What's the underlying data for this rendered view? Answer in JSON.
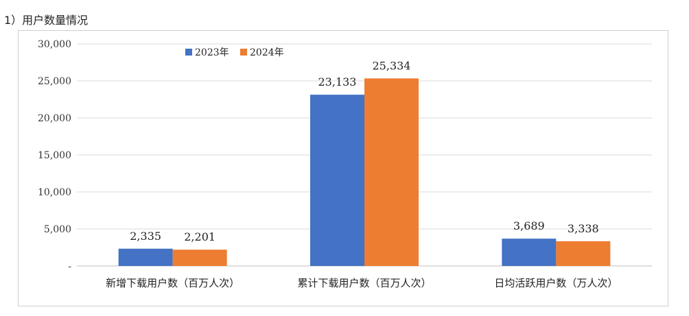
{
  "heading": "1）用户数量情况",
  "chart_data": {
    "type": "bar",
    "categories": [
      "新增下载用户数（百万人次）",
      "累计下载用户数（百万人次）",
      "日均活跃用户数（万人次）"
    ],
    "series": [
      {
        "name": "2023年",
        "values": [
          2335,
          23133,
          3689
        ],
        "labels": [
          "2,335",
          "23,133",
          "3,689"
        ],
        "color": "#4472C4"
      },
      {
        "name": "2024年",
        "values": [
          2201,
          25334,
          3338
        ],
        "labels": [
          "2,201",
          "25,334",
          "3,338"
        ],
        "color": "#ED7D31"
      }
    ],
    "ylim": [
      0,
      30000
    ],
    "yticks": [
      {
        "value": 0,
        "label": "-"
      },
      {
        "value": 5000,
        "label": "5,000"
      },
      {
        "value": 10000,
        "label": "10,000"
      },
      {
        "value": 15000,
        "label": "15,000"
      },
      {
        "value": 20000,
        "label": "20,000"
      },
      {
        "value": 25000,
        "label": "25,000"
      },
      {
        "value": 30000,
        "label": "30,000"
      }
    ],
    "grid": true,
    "legend_position": "top-left",
    "title": "",
    "xlabel": "",
    "ylabel": ""
  }
}
